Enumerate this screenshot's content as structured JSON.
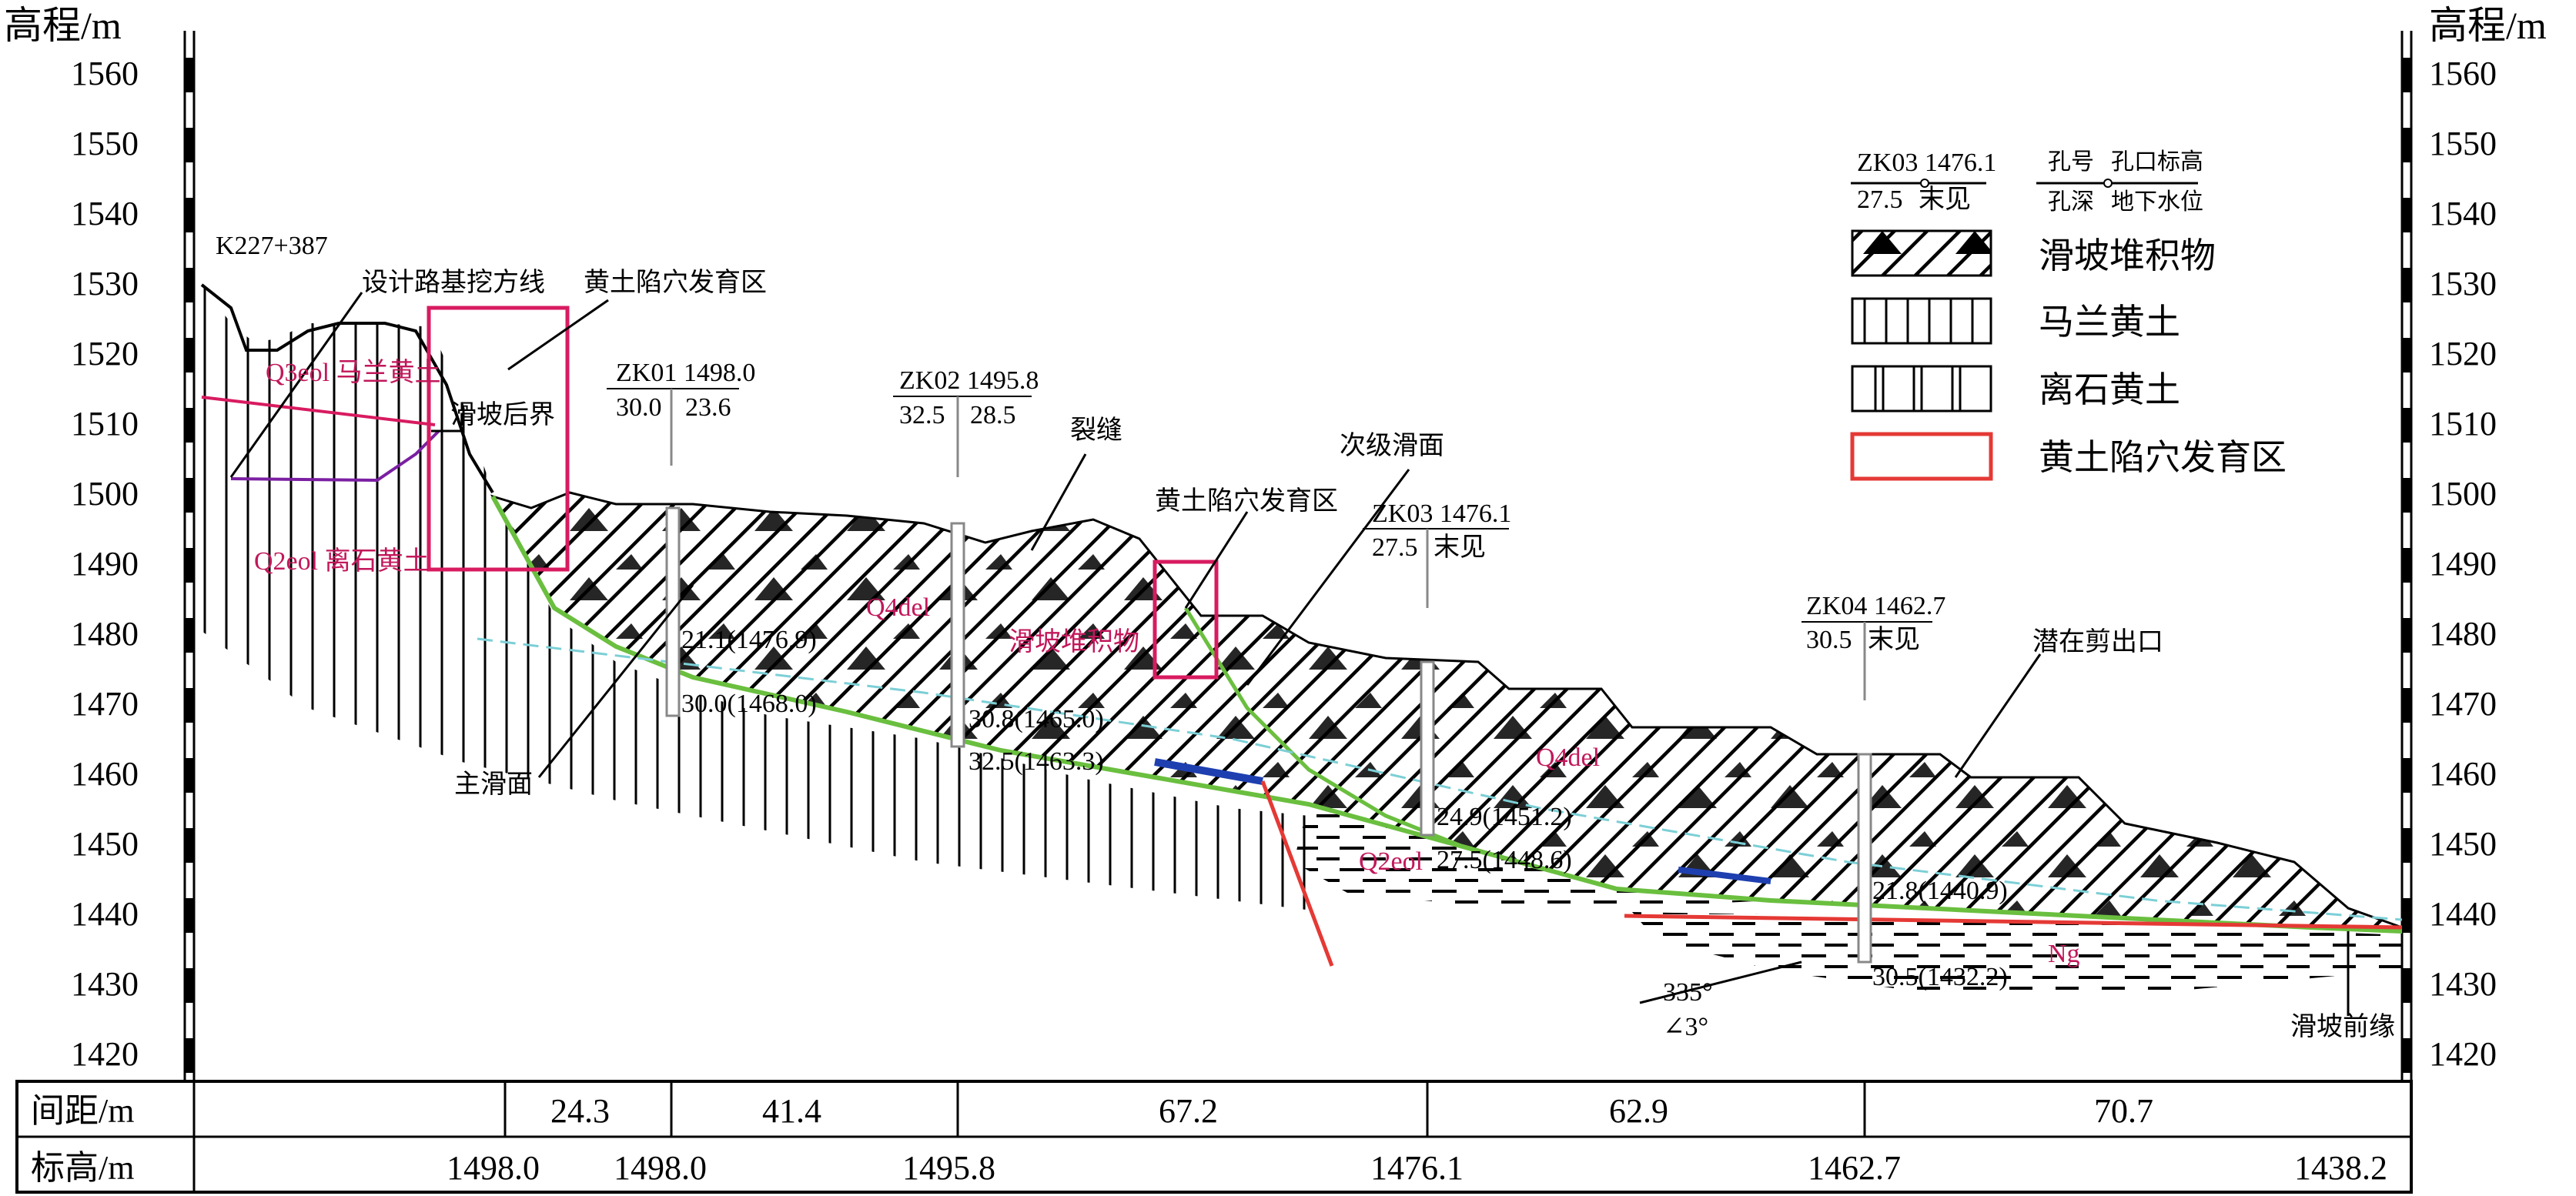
{
  "axis": {
    "title_left": "高程/m",
    "title_right": "高程/m",
    "ticks": [
      "1560",
      "1550",
      "1540",
      "1530",
      "1520",
      "1510",
      "1500",
      "1490",
      "1480",
      "1470",
      "1460",
      "1450",
      "1440",
      "1430",
      "1420"
    ]
  },
  "labels": {
    "station": "K227+387",
    "design_line": "设计路基挖方线",
    "sinkhole_zone_top": "黄土陷穴发育区",
    "landslide_back": "滑坡后界",
    "crack": "裂缝",
    "sinkhole_zone_mid": "黄土陷穴发育区",
    "secondary_surface": "次级滑面",
    "main_surface": "主滑面",
    "potential_exit": "潜在剪出口",
    "toe": "滑坡前缘",
    "dip_dir": "335°",
    "dip_angle": "∠3°"
  },
  "strata": {
    "q_malan": "Q3eol 马兰黄土",
    "q_lishi": "Q2eol 离石黄土",
    "q_del_a": "Q4del",
    "q_del_b": "滑坡堆积物",
    "q_del_c": "Q4del",
    "q_lishi_b": "Q2eol",
    "ng": "Ng"
  },
  "boreholes": [
    {
      "id": "ZK01 1498.0",
      "depth": "30.0",
      "water": "23.6",
      "m1": "21.1(1476.9)",
      "m2": "30.0(1468.0)"
    },
    {
      "id": "ZK02 1495.8",
      "depth": "32.5",
      "water": "28.5",
      "m1": "30.8(1465.0)",
      "m2": "32.5(1463.3)"
    },
    {
      "id": "ZK03 1476.1",
      "depth": "27.5",
      "water": "末见",
      "m1": "24.9(1451.2)",
      "m2": "27.5(1448.6)"
    },
    {
      "id": "ZK04 1462.7",
      "depth": "30.5",
      "water": "末见",
      "m1": "21.8(1440.9)",
      "m2": "30.5(1432.2)"
    }
  ],
  "legend": {
    "key_top": "ZK03 1476.1",
    "key_bottom_left": "27.5",
    "key_bottom_right": "末见",
    "key_desc_1": "孔号",
    "key_desc_2": "孔口标高",
    "key_desc_3": "孔深",
    "key_desc_4": "地下水位",
    "items": [
      "滑坡堆积物",
      "马兰黄土",
      "离石黄土",
      "黄土陷穴发育区"
    ]
  },
  "table": {
    "row1_header": "间距/m",
    "row2_header": "标高/m",
    "spacing": [
      "24.3",
      "41.4",
      "67.2",
      "62.9",
      "70.7"
    ],
    "elevation": [
      "1498.0",
      "1498.0",
      "1495.8",
      "1476.1",
      "1462.7",
      "1438.2"
    ]
  }
}
